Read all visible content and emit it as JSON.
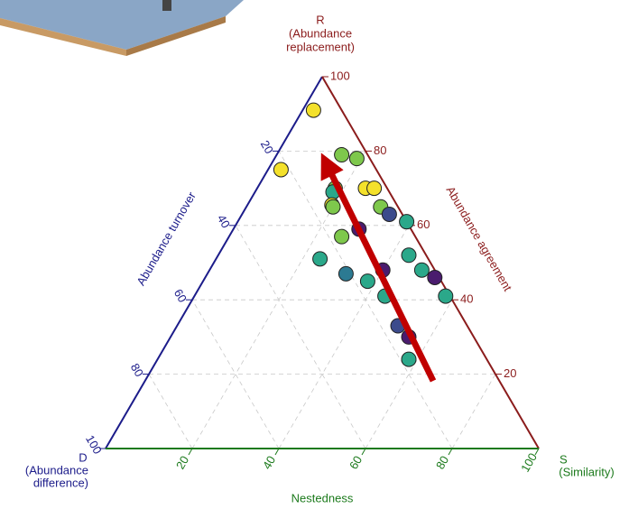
{
  "chart_data": {
    "type": "ternary",
    "labels": {
      "top": [
        "R",
        "(Abundance",
        "replacement)"
      ],
      "left": [
        "D",
        "(Abundance",
        "difference)"
      ],
      "right": [
        "S",
        "(Similarity)"
      ]
    },
    "axes": {
      "left": {
        "title": "Abundance turnover",
        "ticks": [
          20,
          40,
          60,
          80,
          100
        ],
        "color": "#1c1c8a"
      },
      "right": {
        "title": "Abundance agreement",
        "ticks": [
          20,
          40,
          60,
          80,
          100
        ],
        "color": "#8b1c1c"
      },
      "bottom": {
        "title": "Nestedness",
        "ticks": [
          20,
          40,
          60,
          80,
          100
        ],
        "color": "#1c7a1c"
      }
    },
    "grid": true,
    "points": {
      "s": [
        2.5,
        15,
        19,
        3,
        18,
        25,
        27,
        18,
        19.5,
        20,
        31,
        34,
        29,
        39,
        26,
        24,
        44,
        32,
        40,
        49,
        38,
        53,
        58,
        44,
        51,
        55,
        58
      ],
      "r": [
        91,
        79,
        78,
        75,
        70,
        70,
        70,
        69,
        65.5,
        65,
        65,
        63,
        59,
        61,
        57,
        51,
        52,
        47,
        48,
        48,
        45,
        46,
        41,
        41,
        33,
        30,
        24
      ],
      "colors": [
        "#f4e12b",
        "#7ec84c",
        "#7ec84c",
        "#f4e12b",
        "#7ec84c",
        "#f4e12b",
        "#f4e12b",
        "#2ba88a",
        "#f4e12b",
        "#7ec84c",
        "#7ec84c",
        "#3c4b8c",
        "#4a1c6e",
        "#2ba88a",
        "#7ec84c",
        "#2ba88a",
        "#2ba88a",
        "#2c7a92",
        "#4a1c6e",
        "#2ba88a",
        "#2ba88a",
        "#4a1c6e",
        "#2ba88a",
        "#2ba88a",
        "#3c4b8c",
        "#4a1c6e",
        "#2ba88a"
      ]
    }
  }
}
